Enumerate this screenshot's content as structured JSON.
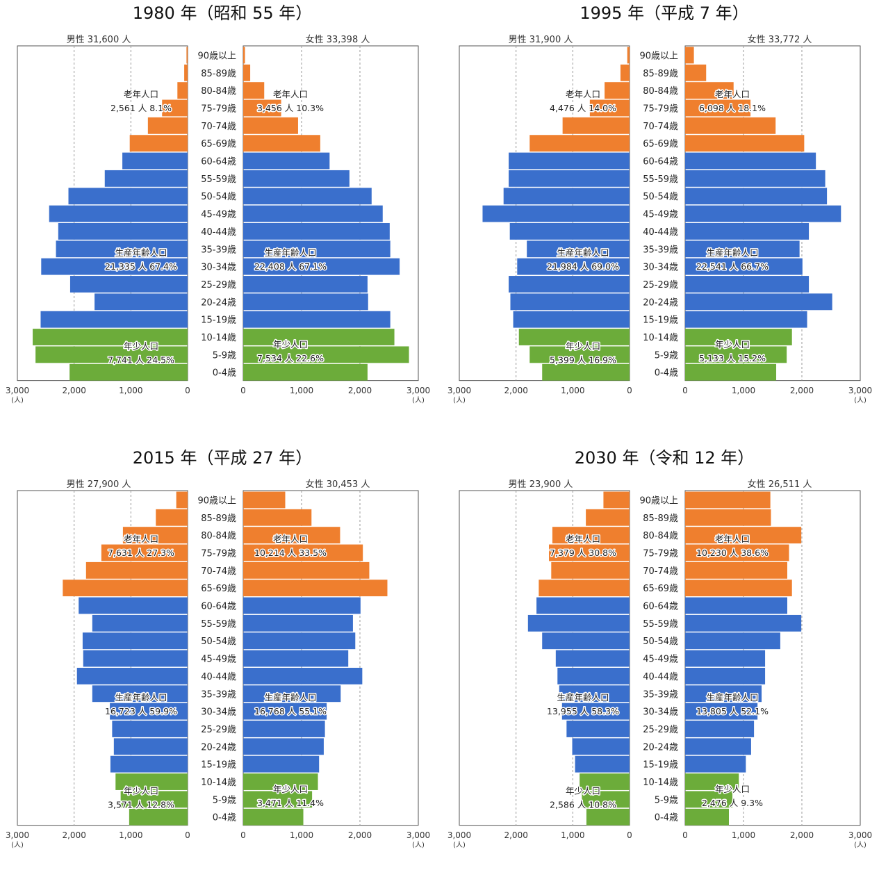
{
  "age_labels": [
    "90歳以上",
    "85-89歳",
    "80-84歳",
    "75-79歳",
    "70-74歳",
    "65-69歳",
    "60-64歳",
    "55-59歳",
    "50-54歳",
    "45-49歳",
    "40-44歳",
    "35-39歳",
    "30-34歳",
    "25-29歳",
    "20-24歳",
    "15-19歳",
    "10-14歳",
    "5-9歳",
    "0-4歳"
  ],
  "axis_ticks_labels": [
    "3,000",
    "2,000",
    "1,000",
    "0",
    "0",
    "1,000",
    "2,000",
    "3,000"
  ],
  "unit_label": "(人)",
  "colors": {
    "elderly": "#ef7f2e",
    "working": "#3a6fcc",
    "young": "#6cac3a",
    "frame": "#555555",
    "grid": "#999999"
  },
  "chart_data": [
    {
      "type": "bar",
      "title": "1980 年（昭和 55 年）",
      "xlim": [
        0,
        3000
      ],
      "male_label": "男性  31,600 人",
      "female_label": "女性  33,398 人",
      "male": [
        20,
        60,
        180,
        450,
        700,
        1020,
        1150,
        1460,
        2100,
        2440,
        2280,
        2320,
        2580,
        2070,
        1640,
        2590,
        2730,
        2680,
        2080
      ],
      "female": [
        30,
        120,
        360,
        650,
        940,
        1320,
        1480,
        1820,
        2200,
        2390,
        2510,
        2520,
        2680,
        2130,
        2140,
        2520,
        2590,
        2840,
        2130
      ],
      "annotations": {
        "male_elderly": [
          "老年人口",
          "2,561 人  8.1%"
        ],
        "female_elderly": [
          "老年人口",
          "3,456 人  10.3%"
        ],
        "male_working": [
          "生産年齢人口",
          "21,335 人  67.4%"
        ],
        "female_working": [
          "生産年齢人口",
          "22,408 人  67.1%"
        ],
        "male_young": [
          "年少人口",
          "7,741 人  24.5%"
        ],
        "female_young": [
          "年少人口",
          "7,534 人  22.6%"
        ]
      }
    },
    {
      "type": "bar",
      "title": "1995 年（平成 7 年）",
      "xlim": [
        0,
        3000
      ],
      "male_label": "男性  31,900 人",
      "female_label": "女性  33,772 人",
      "male": [
        40,
        160,
        440,
        700,
        1180,
        1760,
        2130,
        2130,
        2220,
        2590,
        2110,
        1810,
        1980,
        2130,
        2100,
        2050,
        1950,
        1760,
        1540
      ],
      "female": [
        150,
        360,
        830,
        1120,
        1550,
        2040,
        2240,
        2400,
        2430,
        2670,
        2120,
        1960,
        2010,
        2120,
        2520,
        2090,
        1830,
        1740,
        1560
      ],
      "annotations": {
        "male_elderly": [
          "老年人口",
          "4,476 人  14.0%"
        ],
        "female_elderly": [
          "老年人口",
          "6,098 人  18.1%"
        ],
        "male_working": [
          "生産年齢人口",
          "21,984 人  69.0%"
        ],
        "female_working": [
          "生産年齢人口",
          "22,541 人  66.7%"
        ],
        "male_young": [
          "年少人口",
          "5,399 人  16.9%"
        ],
        "female_young": [
          "年少人口",
          "5,133 人  15.2%"
        ]
      }
    },
    {
      "type": "bar",
      "title": "2015 年（平成 27 年）",
      "xlim": [
        0,
        3000
      ],
      "male_label": "男性  27,900 人",
      "female_label": "女性  30,453 人",
      "male": [
        200,
        560,
        1140,
        1520,
        1790,
        2200,
        1920,
        1680,
        1850,
        1840,
        1950,
        1680,
        1370,
        1330,
        1300,
        1360,
        1270,
        1180,
        1030
      ],
      "female": [
        720,
        1170,
        1660,
        2050,
        2160,
        2470,
        2010,
        1880,
        1920,
        1800,
        2040,
        1670,
        1430,
        1400,
        1380,
        1300,
        1280,
        1180,
        1030
      ],
      "annotations": {
        "male_elderly": [
          "老年人口",
          "7,631 人  27.3%"
        ],
        "female_elderly": [
          "老年人口",
          "10,214 人  33.5%"
        ],
        "male_working": [
          "生産年齢人口",
          "16,723 人  59.9%"
        ],
        "female_working": [
          "生産年齢人口",
          "16,768 人  55.1%"
        ],
        "male_young": [
          "年少人口",
          "3,571 人  12.8%"
        ],
        "female_young": [
          "年少人口",
          "3,471 人  11.4%"
        ]
      }
    },
    {
      "type": "bar",
      "title": "2030 年（令和 12 年）",
      "xlim": [
        0,
        3000
      ],
      "male_label": "男性  23,900 人",
      "female_label": "女性  26,511 人",
      "male": [
        460,
        770,
        1360,
        1420,
        1380,
        1600,
        1640,
        1790,
        1540,
        1300,
        1270,
        1240,
        1190,
        1110,
        1010,
        960,
        880,
        840,
        760
      ],
      "female": [
        1460,
        1470,
        1990,
        1780,
        1750,
        1830,
        1750,
        1990,
        1630,
        1370,
        1370,
        1310,
        1240,
        1180,
        1130,
        1040,
        920,
        810,
        750
      ],
      "annotations": {
        "male_elderly": [
          "老年人口",
          "7,379 人  30.8%"
        ],
        "female_elderly": [
          "老年人口",
          "10,230 人  38.6%"
        ],
        "male_working": [
          "生産年齢人口",
          "13,955 人  58.3%"
        ],
        "female_working": [
          "生産年齢人口",
          "13,805 人  52.1%"
        ],
        "male_young": [
          "年少人口",
          "2,586 人  10.8%"
        ],
        "female_young": [
          "年少人口",
          "2,476 人  9.3%"
        ]
      }
    }
  ]
}
